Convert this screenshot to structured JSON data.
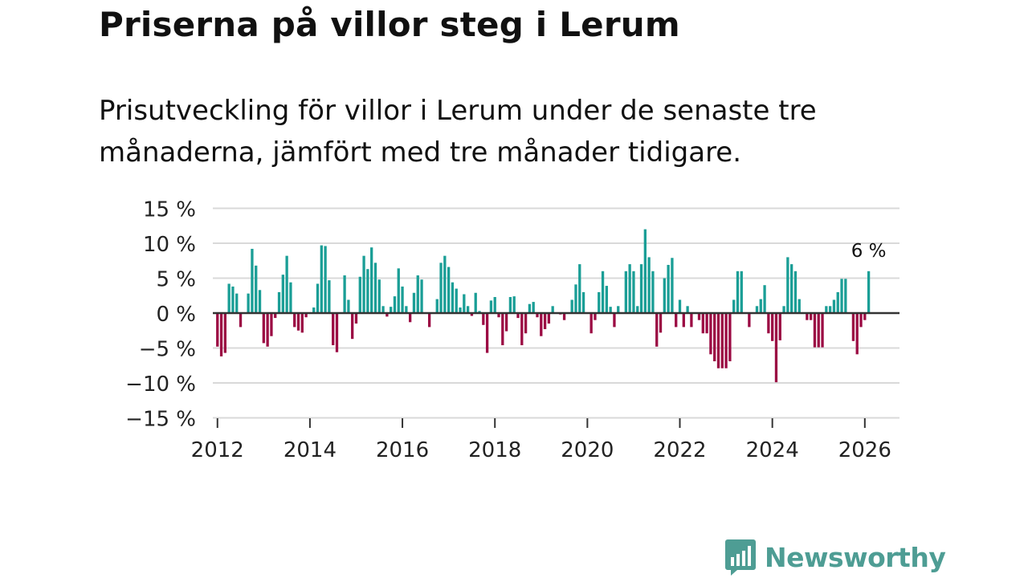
{
  "title": "Priserna på villor steg i Lerum",
  "subtitle": "Prisutveckling för villor i Lerum under de senaste tre månaderna, jämfört med tre månader tidigare.",
  "brand": {
    "name": "Newsworthy",
    "logo_icon": "bar-chart-speech-bubble-icon"
  },
  "colors": {
    "positive": "#1a9e96",
    "negative": "#9b0a43",
    "gridline": "#d9d9d9",
    "zero_line": "#333333",
    "brand": "#4e9d94"
  },
  "chart_data": {
    "type": "bar",
    "title": "Priserna på villor steg i Lerum",
    "xlabel": "",
    "ylabel": "",
    "unit": "%",
    "ylim": [
      -15,
      15
    ],
    "y_ticks": [
      15,
      10,
      5,
      0,
      -5,
      -10,
      -15
    ],
    "y_tick_labels": [
      "15 %",
      "10 %",
      "5 %",
      "0 %",
      "−5 %",
      "−10 %",
      "−15 %"
    ],
    "x_ticks": [
      2012,
      2014,
      2016,
      2018,
      2020,
      2022,
      2024,
      2026
    ],
    "x_tick_labels": [
      "2012",
      "2014",
      "2016",
      "2018",
      "2020",
      "2022",
      "2024",
      "2026"
    ],
    "xlim": [
      2011.9,
      2026.75
    ],
    "start": {
      "year": 2012,
      "month": 1
    },
    "frequency": "monthly",
    "grid": true,
    "annotation": {
      "label": "6 %",
      "point": "last"
    },
    "values": [
      -4.8,
      -6.2,
      -5.7,
      4.2,
      3.8,
      2.8,
      -2.0,
      0,
      2.8,
      9.2,
      6.8,
      3.3,
      -4.3,
      -4.8,
      -3.3,
      -0.7,
      3.0,
      5.5,
      8.2,
      4.4,
      -2.0,
      -2.5,
      -2.8,
      -0.6,
      0,
      0.8,
      4.2,
      9.7,
      9.6,
      4.7,
      -4.6,
      -5.6,
      0,
      5.4,
      1.9,
      -3.7,
      -1.5,
      5.2,
      8.2,
      6.3,
      9.4,
      7.2,
      4.8,
      1.0,
      -0.5,
      0.9,
      2.4,
      6.4,
      3.8,
      1.0,
      -1.3,
      2.9,
      5.4,
      4.8,
      0,
      -2.0,
      0,
      2.0,
      7.2,
      8.2,
      6.6,
      4.4,
      3.5,
      0.8,
      2.7,
      1.0,
      -0.4,
      2.9,
      0.3,
      -1.7,
      -5.7,
      1.8,
      2.3,
      -0.6,
      -4.6,
      -2.6,
      2.3,
      2.4,
      -0.7,
      -4.6,
      -2.9,
      1.3,
      1.6,
      -0.6,
      -3.3,
      -2.3,
      -1.5,
      1.0,
      0,
      -0.2,
      -1.0,
      0,
      1.9,
      4.1,
      7.0,
      3.0,
      0,
      -2.9,
      -1.0,
      3.0,
      6.0,
      3.9,
      0.9,
      -2.0,
      1.0,
      0,
      6.0,
      7.0,
      6.0,
      1.0,
      7.0,
      12.0,
      8.0,
      6.0,
      -4.8,
      -2.8,
      5.0,
      6.9,
      7.9,
      -2.0,
      1.9,
      -2.0,
      1.0,
      -2.0,
      0,
      -1.0,
      -2.9,
      -2.9,
      -5.9,
      -6.9,
      -7.9,
      -7.9,
      -7.9,
      -6.9,
      1.9,
      6.0,
      6.0,
      0,
      -2.0,
      0,
      1.0,
      2.0,
      4.0,
      -2.9,
      -4.0,
      -9.9,
      -3.9,
      1.0,
      8.0,
      7.0,
      6.0,
      2.0,
      0,
      -1.0,
      -1.0,
      -4.9,
      -4.9,
      -4.9,
      1.0,
      1.0,
      1.9,
      3.0,
      4.9,
      4.9,
      0,
      -4.0,
      -5.9,
      -2.0,
      -1.0,
      6.0
    ]
  }
}
